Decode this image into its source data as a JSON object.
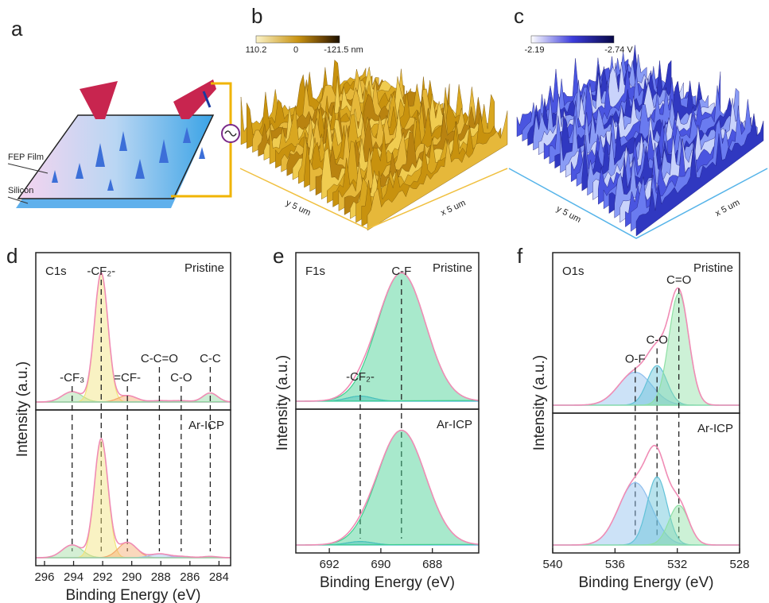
{
  "panels": {
    "a": {
      "label": "a",
      "layers": [
        "FEP Film",
        "Silicon"
      ]
    },
    "b": {
      "label": "b",
      "colorbar": [
        "110.2",
        "0",
        "-121.5 nm"
      ],
      "axes": [
        "y 5 um",
        "x 5 um"
      ]
    },
    "c": {
      "label": "c",
      "colorbar": [
        "-2.19",
        "-2.74 V"
      ],
      "axes": [
        "y 5 um",
        "x 5 um"
      ]
    }
  },
  "chart_data": [
    {
      "type": "xps",
      "panel_label": "d",
      "title": "C1s",
      "xlabel": "Binding Energy (eV)",
      "ylabel": "Intensity (a.u.)",
      "states": [
        "Pristine",
        "Ar-ICP"
      ],
      "xlim": [
        296.6,
        283.2
      ],
      "xticks": [
        296,
        294,
        292,
        290,
        288,
        286,
        284
      ],
      "ylim": [
        0,
        1.12
      ],
      "envelope_color": "#f08cb5",
      "components": [
        {
          "name": "-CF₃",
          "center": 294.1,
          "fwhm": 1.6,
          "color": "#9fdc9f",
          "heights": [
            0.08,
            0.1
          ]
        },
        {
          "name": "-CF₂-",
          "center": 292.1,
          "fwhm": 1.1,
          "color": "#f2e37a",
          "heights": [
            1.0,
            0.93
          ]
        },
        {
          "name": "=CF-",
          "center": 290.3,
          "fwhm": 1.5,
          "color": "#f3a86a",
          "heights": [
            0.05,
            0.12
          ]
        },
        {
          "name": "C-C=O",
          "center": 288.1,
          "fwhm": 1.5,
          "color": "#9fc3ee",
          "heights": [
            0.01,
            0.03
          ]
        },
        {
          "name": "C-O",
          "center": 286.6,
          "fwhm": 1.5,
          "color": "#c7a6e6",
          "heights": [
            0.01,
            0.01
          ]
        },
        {
          "name": "C-C",
          "center": 284.6,
          "fwhm": 1.2,
          "color": "#8fd6a0",
          "heights": [
            0.07,
            0.01
          ]
        }
      ]
    },
    {
      "type": "xps",
      "panel_label": "e",
      "title": "F1s",
      "xlabel": "Binding Energy (eV)",
      "ylabel": "Intensity (a.u.)",
      "states": [
        "Pristine",
        "Ar-ICP"
      ],
      "xlim": [
        693.3,
        686.2
      ],
      "xticks": [
        692,
        690,
        688
      ],
      "ylim": [
        0,
        1.12
      ],
      "envelope_color": "#f08cb5",
      "components": [
        {
          "name": "-CF₂-",
          "center": 690.8,
          "fwhm": 1.2,
          "color": "#4fb4e0",
          "heights": [
            0.04,
            0.03
          ]
        },
        {
          "name": "C-F",
          "center": 689.2,
          "fwhm": 2.2,
          "color": "#3fcf8f",
          "heights": [
            1.0,
            0.98
          ]
        }
      ]
    },
    {
      "type": "xps",
      "panel_label": "f",
      "title": "O1s",
      "xlabel": "Binding Energy (eV)",
      "ylabel": "Intensity (a.u.)",
      "states": [
        "Pristine",
        "Ar-ICP"
      ],
      "xlim": [
        540,
        528
      ],
      "xticks": [
        540,
        536,
        532,
        528
      ],
      "ylim": [
        0,
        1.12
      ],
      "envelope_color": "#f08cb5",
      "components": [
        {
          "name": "O-F",
          "center": 534.7,
          "fwhm": 2.5,
          "color": "#8ebfee",
          "heights": [
            0.25,
            0.55
          ]
        },
        {
          "name": "C-O",
          "center": 533.3,
          "fwhm": 1.5,
          "color": "#62c2d8",
          "heights": [
            0.3,
            0.6
          ]
        },
        {
          "name": "C=O",
          "center": 531.9,
          "fwhm": 1.5,
          "color": "#8ee0a4",
          "heights": [
            0.85,
            0.35
          ]
        }
      ]
    }
  ]
}
